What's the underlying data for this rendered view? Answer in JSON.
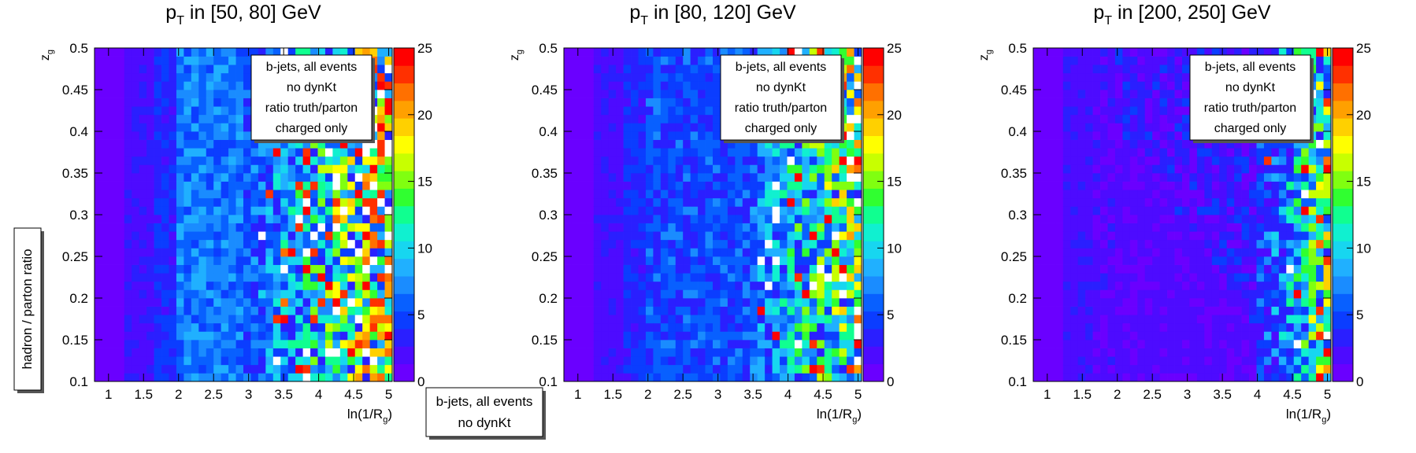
{
  "side_label": "hadron / parton ratio",
  "bottom_legend": [
    "b-jets, all events",
    "no dynKt"
  ],
  "panel_legend": [
    "b-jets, all events",
    "no dynKt",
    "ratio truth/parton",
    "charged only"
  ],
  "colors": {
    "palette": [
      "#6a00ff",
      "#4d0bff",
      "#2a1fff",
      "#0b3dff",
      "#0860ff",
      "#1a8cff",
      "#20b0ff",
      "#17d6f0",
      "#10f0d0",
      "#10ff90",
      "#30ff30",
      "#80ff10",
      "#c8ff00",
      "#ffff00",
      "#ffd000",
      "#ffa000",
      "#ff7000",
      "#ff3000",
      "#ff0000"
    ],
    "overflow": "#ffffff"
  },
  "chart_data": [
    {
      "type": "heatmap",
      "title": "p_T in [50, 80] GeV",
      "title_parts": {
        "p": "p",
        "sub": "T",
        "rest": " in [50, 80] GeV"
      },
      "xlabel": "ln(1/R_g)",
      "xlabel_parts": {
        "main": "ln(1/R",
        "sub": "g",
        "end": ")"
      },
      "ylabel": "z_g",
      "ylabel_parts": {
        "main": "z",
        "sub": "g"
      },
      "xlim": [
        0.8,
        5.05
      ],
      "ylim": [
        0.1,
        0.5
      ],
      "x_ticks": [
        "1",
        "1.5",
        "2",
        "2.5",
        "3",
        "3.5",
        "4",
        "4.5",
        "5"
      ],
      "y_ticks": [
        "0.1",
        "0.15",
        "0.2",
        "0.25",
        "0.3",
        "0.35",
        "0.4",
        "0.45",
        "0.5"
      ],
      "zlim": [
        0,
        25
      ],
      "z_ticks": [
        "0",
        "5",
        "10",
        "15",
        "20",
        "25"
      ],
      "nx": 40,
      "ny": 40,
      "seed": 11,
      "noise_start": 2.9,
      "spread": 18,
      "hot_frac": 0.5
    },
    {
      "type": "heatmap",
      "title": "p_T in [80, 120] GeV",
      "title_parts": {
        "p": "p",
        "sub": "T",
        "rest": " in [80, 120] GeV"
      },
      "xlabel": "ln(1/R_g)",
      "xlabel_parts": {
        "main": "ln(1/R",
        "sub": "g",
        "end": ")"
      },
      "ylabel": "z_g",
      "ylabel_parts": {
        "main": "z",
        "sub": "g"
      },
      "xlim": [
        0.8,
        5.05
      ],
      "ylim": [
        0.1,
        0.5
      ],
      "x_ticks": [
        "1",
        "1.5",
        "2",
        "2.5",
        "3",
        "3.5",
        "4",
        "4.5",
        "5"
      ],
      "y_ticks": [
        "0.1",
        "0.15",
        "0.2",
        "0.25",
        "0.3",
        "0.35",
        "0.4",
        "0.45",
        "0.5"
      ],
      "zlim": [
        0,
        25
      ],
      "z_ticks": [
        "0",
        "5",
        "10",
        "15",
        "20",
        "25"
      ],
      "nx": 40,
      "ny": 40,
      "seed": 29,
      "noise_start": 3.3,
      "spread": 16,
      "hot_frac": 0.35
    },
    {
      "type": "heatmap",
      "title": "p_T in [200, 250] GeV",
      "title_parts": {
        "p": "p",
        "sub": "T",
        "rest": " in [200, 250] GeV"
      },
      "xlabel": "ln(1/R_g)",
      "xlabel_parts": {
        "main": "ln(1/R",
        "sub": "g",
        "end": ")"
      },
      "ylabel": "z_g",
      "ylabel_parts": {
        "main": "z",
        "sub": "g"
      },
      "xlim": [
        0.8,
        5.05
      ],
      "ylim": [
        0.1,
        0.5
      ],
      "x_ticks": [
        "1",
        "1.5",
        "2",
        "2.5",
        "3",
        "3.5",
        "4",
        "4.5",
        "5"
      ],
      "y_ticks": [
        "0.1",
        "0.15",
        "0.2",
        "0.25",
        "0.3",
        "0.35",
        "0.4",
        "0.45",
        "0.5"
      ],
      "zlim": [
        0,
        25
      ],
      "z_ticks": [
        "0",
        "5",
        "10",
        "15",
        "20",
        "25"
      ],
      "nx": 40,
      "ny": 40,
      "seed": 47,
      "noise_start": 4.0,
      "spread": 14,
      "hot_frac": 0.25
    }
  ]
}
